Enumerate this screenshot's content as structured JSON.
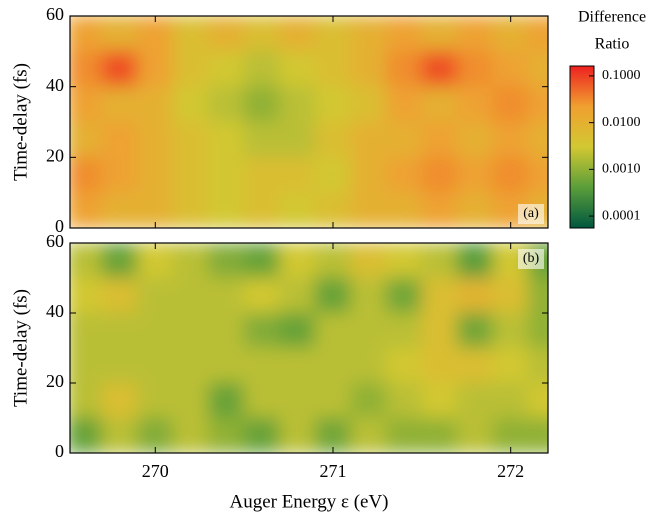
{
  "chart_data": [
    {
      "type": "heatmap",
      "panel_label": "(a)",
      "ylabel": "Time-delay (fs)",
      "x": [
        269.6,
        269.8,
        270.0,
        270.2,
        270.4,
        270.6,
        270.8,
        271.0,
        271.2,
        271.4,
        271.6,
        271.8,
        272.0,
        272.2
      ],
      "y": [
        55,
        45,
        35,
        25,
        15,
        5
      ],
      "z": [
        [
          0.02,
          0.01,
          0.02,
          0.005,
          0.01,
          0.005,
          0.01,
          0.005,
          0.01,
          0.02,
          0.01,
          0.02,
          0.01,
          0.02
        ],
        [
          0.03,
          0.08,
          0.02,
          0.005,
          0.003,
          0.002,
          0.003,
          0.005,
          0.01,
          0.03,
          0.08,
          0.03,
          0.02,
          0.01
        ],
        [
          0.02,
          0.01,
          0.01,
          0.003,
          0.002,
          0.001,
          0.002,
          0.003,
          0.005,
          0.02,
          0.01,
          0.02,
          0.03,
          0.02
        ],
        [
          0.01,
          0.02,
          0.01,
          0.005,
          0.003,
          0.002,
          0.002,
          0.005,
          0.01,
          0.01,
          0.02,
          0.01,
          0.02,
          0.01
        ],
        [
          0.03,
          0.02,
          0.01,
          0.005,
          0.003,
          0.005,
          0.005,
          0.003,
          0.01,
          0.02,
          0.03,
          0.02,
          0.03,
          0.02
        ],
        [
          0.02,
          0.01,
          0.01,
          0.005,
          0.003,
          0.005,
          0.003,
          0.005,
          0.01,
          0.01,
          0.02,
          0.01,
          0.02,
          0.01
        ]
      ],
      "xlim": [
        269.52,
        272.21
      ],
      "ylim": [
        0,
        60
      ],
      "yticks": [
        0,
        20,
        40,
        60
      ],
      "colorbar_title": [
        "Difference",
        "Ratio"
      ],
      "log_scale": true,
      "zlim": [
        5.56e-05,
        0.163
      ],
      "zticks": [
        {
          "value": 0.1,
          "label": "0.1000"
        },
        {
          "value": 0.01,
          "label": "0.0100"
        },
        {
          "value": 0.001,
          "label": "0.0010"
        },
        {
          "value": 0.0001,
          "label": "0.0001"
        }
      ],
      "colormap": [
        "#00573f",
        "#5a9e3a",
        "#d2c832",
        "#f0a030",
        "#ee2020"
      ]
    },
    {
      "type": "heatmap",
      "panel_label": "(b)",
      "ylabel": "Time-delay (fs)",
      "xlabel": "Auger Energy ε (eV)",
      "x": [
        269.6,
        269.8,
        270.0,
        270.2,
        270.4,
        270.6,
        270.8,
        271.0,
        271.2,
        271.4,
        271.6,
        271.8,
        272.0,
        272.2
      ],
      "y": [
        55,
        45,
        35,
        25,
        15,
        5
      ],
      "z": [
        [
          0.002,
          0.0005,
          0.003,
          0.002,
          0.0008,
          0.0005,
          0.003,
          0.002,
          0.005,
          0.003,
          0.002,
          0.0004,
          0.003,
          0.0005
        ],
        [
          0.003,
          0.005,
          0.002,
          0.002,
          0.002,
          0.003,
          0.002,
          0.0005,
          0.002,
          0.0006,
          0.005,
          0.008,
          0.005,
          0.001
        ],
        [
          0.002,
          0.002,
          0.002,
          0.002,
          0.002,
          0.0008,
          0.0005,
          0.002,
          0.002,
          0.002,
          0.005,
          0.0006,
          0.002,
          0.001
        ],
        [
          0.002,
          0.002,
          0.002,
          0.002,
          0.002,
          0.002,
          0.002,
          0.002,
          0.002,
          0.003,
          0.005,
          0.005,
          0.003,
          0.002
        ],
        [
          0.002,
          0.005,
          0.002,
          0.002,
          0.0005,
          0.002,
          0.002,
          0.002,
          0.001,
          0.002,
          0.003,
          0.002,
          0.002,
          0.003
        ],
        [
          0.0005,
          0.002,
          0.0008,
          0.002,
          0.001,
          0.0005,
          0.002,
          0.0006,
          0.002,
          0.001,
          0.001,
          0.002,
          0.001,
          0.001
        ]
      ],
      "xlim": [
        269.52,
        272.21
      ],
      "ylim": [
        0,
        60
      ],
      "yticks": [
        0,
        20,
        40,
        60
      ],
      "xticks": [
        270,
        271,
        272
      ]
    }
  ]
}
